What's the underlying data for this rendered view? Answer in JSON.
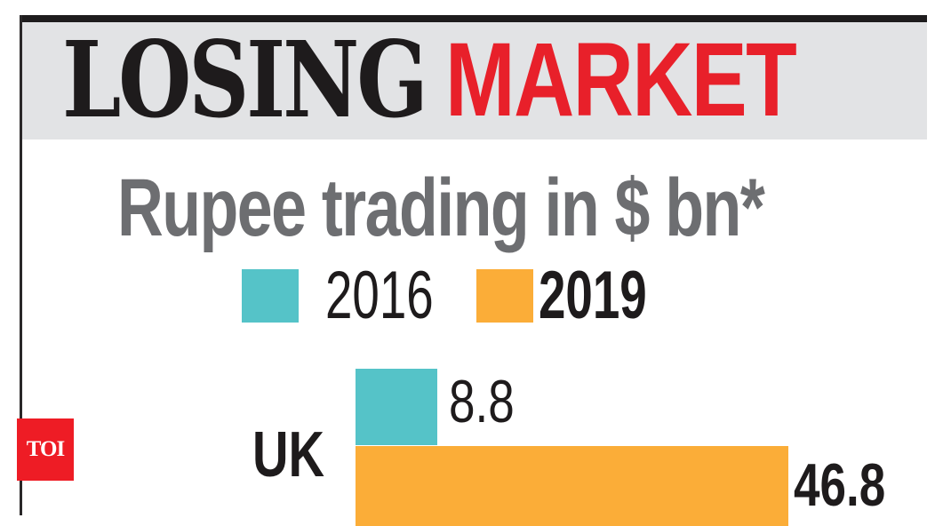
{
  "header": {
    "title_word1": "LOSING",
    "title_word2": "MARKET"
  },
  "subtitle": "Rupee trading in $ bn*",
  "legend": [
    {
      "label": "2016",
      "color": "#55c3c8"
    },
    {
      "label": "2019",
      "color": "#fbad38"
    }
  ],
  "badge": "TOI",
  "colors": {
    "title_dark": "#1e1b1c",
    "title_red": "#e8202a",
    "subtitle_gray": "#6d6e71",
    "header_bg": "#e2e3e5",
    "badge_red": "#ee1c25"
  },
  "chart_data": {
    "type": "bar",
    "orientation": "horizontal",
    "title": "LOSING MARKET",
    "subtitle": "Rupee trading in $ bn*",
    "categories": [
      "UK"
    ],
    "series": [
      {
        "name": "2016",
        "values": [
          8.8
        ],
        "color": "#55c3c8"
      },
      {
        "name": "2019",
        "values": [
          46.8
        ],
        "color": "#fbad38"
      }
    ],
    "value_labels": {
      "2016": [
        "8.8"
      ],
      "2019": [
        "46.8"
      ]
    },
    "xlabel": "",
    "ylabel": "",
    "grid": false,
    "legend_position": "top"
  }
}
